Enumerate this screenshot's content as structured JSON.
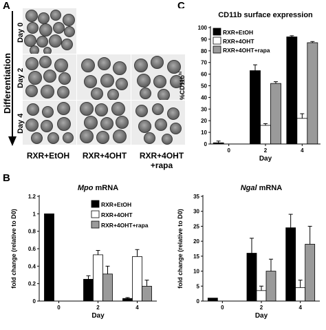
{
  "panel_letters": {
    "a": "A",
    "b": "B",
    "c": "C"
  },
  "micrographs": {
    "axis_label": "Differentiation",
    "rows": [
      "Day 0",
      "Day 2",
      "Day 4"
    ],
    "columns": [
      "RXR+EtOH",
      "RXR+4OHT",
      "RXR+4OHT\n+rapa"
    ]
  },
  "colors": {
    "etoh": "#000000",
    "ohT": "#ffffff",
    "rapa": "#9a9a9a"
  },
  "chart_data": [
    {
      "id": "cd11b",
      "type": "bar",
      "title": "CD11b surface expression",
      "xlabel": "Day",
      "ylabel": "%CD11b",
      "ylabel_superscript": "hi",
      "categories": [
        "0",
        "2",
        "4"
      ],
      "ylim": [
        0,
        100
      ],
      "yticks": [
        0,
        10,
        20,
        30,
        40,
        50,
        60,
        70,
        80,
        90,
        100
      ],
      "legend_position": "top-left",
      "series": [
        {
          "name": "RXR+EtOH",
          "values": [
            1,
            63,
            92
          ],
          "errors": [
            1.5,
            5,
            1
          ]
        },
        {
          "name": "RXR+4OHT",
          "values": [
            null,
            16,
            22
          ],
          "errors": [
            null,
            1.5,
            4
          ]
        },
        {
          "name": "RXR+4OHT+rapa",
          "values": [
            null,
            52,
            87
          ],
          "errors": [
            null,
            1.5,
            1
          ]
        }
      ]
    },
    {
      "id": "mpo",
      "type": "bar",
      "title_italic": "Mpo",
      "title_rest": " mRNA",
      "xlabel": "Day",
      "ylabel": "fold change (relative to D0)",
      "categories": [
        "0",
        "2",
        "4"
      ],
      "ylim": [
        0,
        1.2
      ],
      "yticks": [
        "0",
        "0.2",
        "0.4",
        "0.6",
        "0.8",
        "1",
        "1.2"
      ],
      "legend_position": "top-right",
      "series": [
        {
          "name": "RXR+EtOH",
          "values": [
            1.0,
            0.25,
            0.03
          ],
          "errors": [
            0,
            0.04,
            0.01
          ]
        },
        {
          "name": "RXR+4OHT",
          "values": [
            null,
            0.53,
            0.51
          ],
          "errors": [
            null,
            0.05,
            0.08
          ]
        },
        {
          "name": "RXR+4OHT+rapa",
          "values": [
            null,
            0.31,
            0.17
          ],
          "errors": [
            null,
            0.09,
            0.07
          ]
        }
      ]
    },
    {
      "id": "ngal",
      "type": "bar",
      "title_italic": "Ngal",
      "title_rest": " mRNA",
      "xlabel": "Day",
      "ylabel": "fold change (relative to D0)",
      "categories": [
        "0",
        "2",
        "4"
      ],
      "ylim": [
        0,
        35
      ],
      "yticks": [
        "0",
        "5",
        "10",
        "15",
        "20",
        "25",
        "30",
        "35"
      ],
      "series": [
        {
          "name": "RXR+EtOH",
          "values": [
            1,
            16,
            24.5
          ],
          "errors": [
            0,
            5,
            4.5
          ]
        },
        {
          "name": "RXR+4OHT",
          "values": [
            null,
            3.5,
            4.5
          ],
          "errors": [
            null,
            1.5,
            2.5
          ]
        },
        {
          "name": "RXR+4OHT+rapa",
          "values": [
            null,
            10,
            19
          ],
          "errors": [
            null,
            4,
            6
          ]
        }
      ]
    }
  ]
}
